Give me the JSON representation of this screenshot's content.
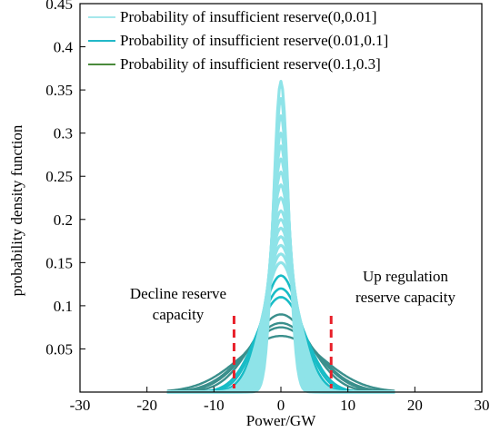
{
  "chart_data": {
    "type": "line",
    "title": "",
    "xlabel": "Power/GW",
    "ylabel": "probability density function",
    "xlim": [
      -30,
      30
    ],
    "ylim": [
      0,
      0.45
    ],
    "xticks": [
      -30,
      -20,
      -10,
      0,
      10,
      20,
      30
    ],
    "yticks": [
      0.05,
      0.1,
      0.15,
      0.2,
      0.25,
      0.3,
      0.35,
      0.4,
      0.45
    ],
    "grid": false,
    "legend_position": "top",
    "legend": [
      {
        "label": "Probability of insufficient reserve(0,0.01]",
        "color": "#a6e8ec"
      },
      {
        "label": "Probability of insufficient reserve(0.01,0.1]",
        "color": "#22b8c8"
      },
      {
        "label": "Probability of insufficient reserve(0.1,0.3]",
        "color": "#4a8a3c"
      }
    ],
    "series": [
      {
        "group": 0,
        "peak": 0.36
      },
      {
        "group": 0,
        "peak": 0.34
      },
      {
        "group": 0,
        "peak": 0.32
      },
      {
        "group": 0,
        "peak": 0.3
      },
      {
        "group": 0,
        "peak": 0.285
      },
      {
        "group": 0,
        "peak": 0.27
      },
      {
        "group": 0,
        "peak": 0.255
      },
      {
        "group": 0,
        "peak": 0.24
      },
      {
        "group": 0,
        "peak": 0.225
      },
      {
        "group": 0,
        "peak": 0.21
      },
      {
        "group": 0,
        "peak": 0.2
      },
      {
        "group": 0,
        "peak": 0.19
      },
      {
        "group": 0,
        "peak": 0.18
      },
      {
        "group": 0,
        "peak": 0.17
      },
      {
        "group": 0,
        "peak": 0.16
      },
      {
        "group": 0,
        "peak": 0.15
      },
      {
        "group": 1,
        "peak": 0.135
      },
      {
        "group": 1,
        "peak": 0.12
      },
      {
        "group": 1,
        "peak": 0.11
      },
      {
        "group": 2,
        "peak": 0.09
      },
      {
        "group": 2,
        "peak": 0.08
      },
      {
        "group": 2,
        "peak": 0.075
      },
      {
        "group": 2,
        "peak": 0.065
      }
    ],
    "reserve_markers": [
      {
        "x": -7,
        "label_lines": [
          "Decline reserve",
          "capacity"
        ]
      },
      {
        "x": 7.5,
        "label_lines": [
          "Up regulation",
          "reserve capacity"
        ]
      }
    ],
    "marker_color": "#e8202a"
  }
}
